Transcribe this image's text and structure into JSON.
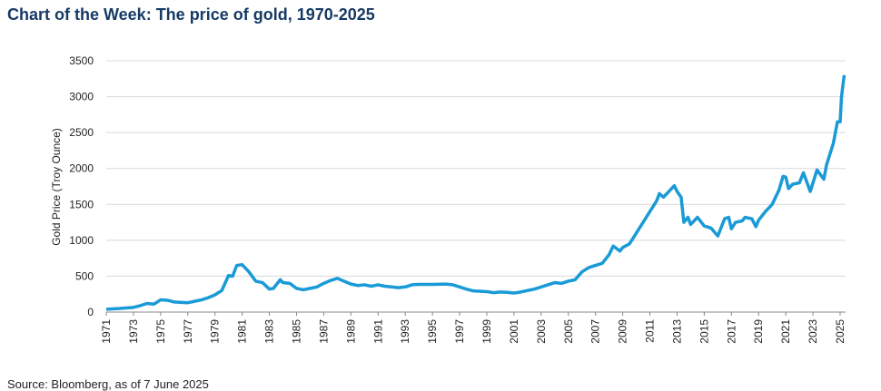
{
  "chart_data": {
    "type": "line",
    "title": "Chart of the Week: The price of gold, 1970-2025",
    "y_label": "Gold Price (Troy Ounce)",
    "source": "Source: Bloomberg, as of 7 June 2025",
    "x": [
      1971,
      1972,
      1973,
      1973.5,
      1974,
      1974.5,
      1975,
      1975.5,
      1976,
      1977,
      1977.5,
      1978,
      1978.5,
      1979,
      1979.5,
      1980,
      1980.3,
      1980.6,
      1981,
      1981.5,
      1982,
      1982.5,
      1983,
      1983.3,
      1983.8,
      1984,
      1984.5,
      1985,
      1985.5,
      1986,
      1986.5,
      1987,
      1987.5,
      1988,
      1988.5,
      1989,
      1989.5,
      1990,
      1990.5,
      1991,
      1991.5,
      1992,
      1992.5,
      1993,
      1993.5,
      1994,
      1995,
      1996,
      1996.5,
      1997,
      1997.5,
      1998,
      1999,
      1999.5,
      2000,
      2000.5,
      2001,
      2001.5,
      2002,
      2002.5,
      2003,
      2003.5,
      2004,
      2004.5,
      2005,
      2005.5,
      2006,
      2006.5,
      2007,
      2007.5,
      2008,
      2008.3,
      2008.8,
      2009,
      2009.5,
      2010,
      2010.5,
      2011,
      2011.5,
      2011.7,
      2012,
      2012.5,
      2012.8,
      2013,
      2013.3,
      2013.5,
      2013.8,
      2014,
      2014.5,
      2015,
      2015.5,
      2016,
      2016.5,
      2016.8,
      2017,
      2017.3,
      2017.8,
      2018,
      2018.5,
      2018.8,
      2019,
      2019.5,
      2020,
      2020.5,
      2020.8,
      2021,
      2021.2,
      2021.5,
      2022,
      2022.3,
      2022.8,
      2023,
      2023.3,
      2023.8,
      2024,
      2024.5,
      2024.8,
      2025,
      2025.1,
      2025.3
    ],
    "series": [
      {
        "name": "Gold",
        "color": "#1a9ad6",
        "values": [
          40,
          50,
          65,
          90,
          120,
          110,
          170,
          165,
          140,
          130,
          150,
          170,
          200,
          240,
          300,
          510,
          500,
          650,
          660,
          560,
          430,
          410,
          320,
          330,
          450,
          410,
          400,
          330,
          310,
          330,
          350,
          400,
          440,
          470,
          430,
          390,
          370,
          380,
          360,
          380,
          360,
          350,
          340,
          350,
          380,
          385,
          385,
          390,
          380,
          350,
          320,
          295,
          285,
          270,
          280,
          275,
          265,
          280,
          300,
          320,
          350,
          380,
          410,
          400,
          430,
          450,
          560,
          620,
          650,
          680,
          800,
          920,
          850,
          900,
          950,
          1100,
          1250,
          1400,
          1550,
          1650,
          1600,
          1700,
          1760,
          1680,
          1600,
          1250,
          1320,
          1220,
          1320,
          1200,
          1170,
          1060,
          1300,
          1320,
          1160,
          1250,
          1270,
          1320,
          1300,
          1190,
          1280,
          1400,
          1500,
          1700,
          1890,
          1880,
          1720,
          1780,
          1800,
          1940,
          1680,
          1800,
          1980,
          1850,
          2050,
          2350,
          2650,
          2650,
          3000,
          3300
        ]
      }
    ],
    "xlim": [
      1971,
      2025.4
    ],
    "xticks": [
      1971,
      1973,
      1975,
      1977,
      1979,
      1981,
      1983,
      1985,
      1987,
      1989,
      1991,
      1993,
      1995,
      1997,
      1999,
      2001,
      2003,
      2005,
      2007,
      2009,
      2011,
      2013,
      2015,
      2017,
      2019,
      2021,
      2023,
      2025
    ],
    "ylim": [
      0,
      3500
    ],
    "yticks": [
      0,
      500,
      1000,
      1500,
      2000,
      2500,
      3000,
      3500
    ],
    "grid": true
  }
}
